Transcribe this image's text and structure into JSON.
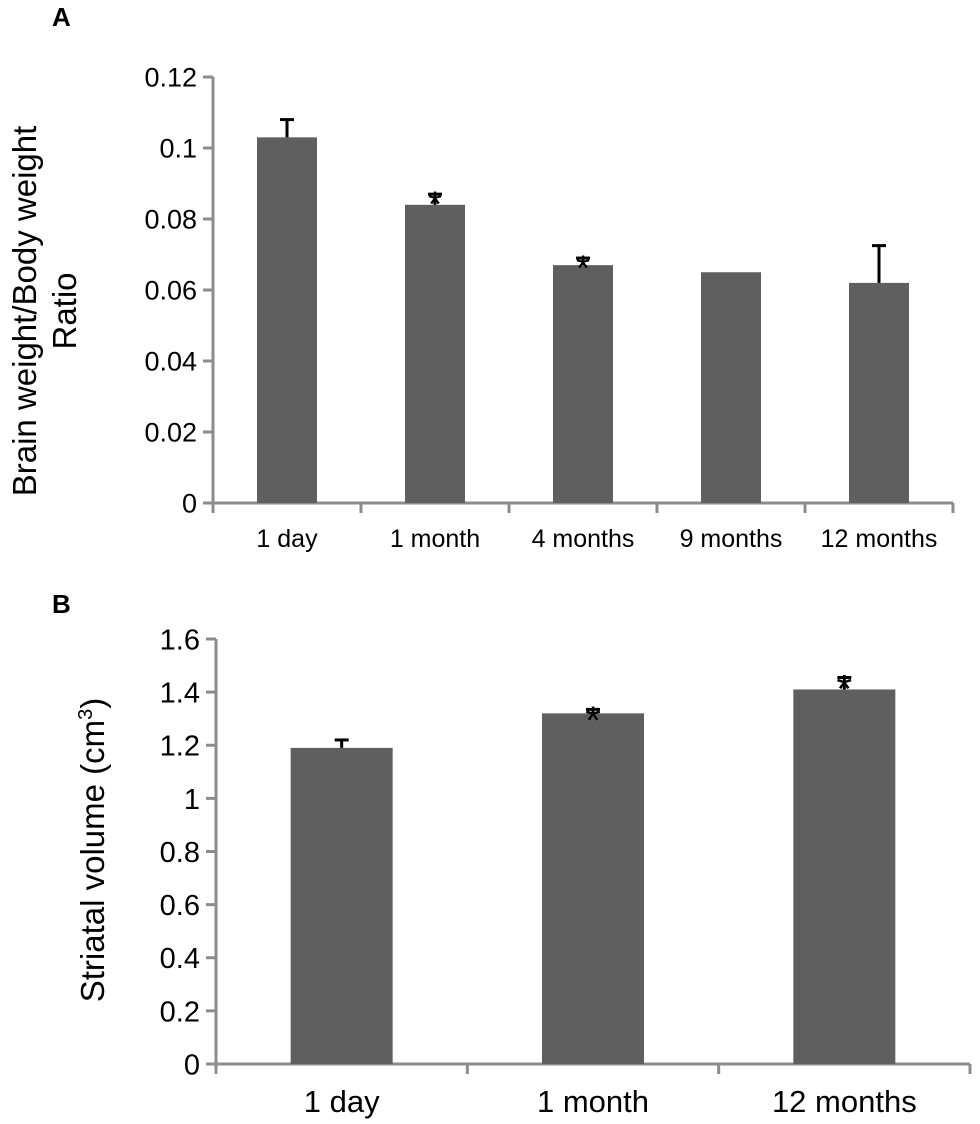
{
  "chart_data": [
    {
      "panel": "A",
      "type": "bar",
      "ylabel_line1": "Brain weight/Body weight",
      "ylabel_line2": "Ratio",
      "xlabel": "",
      "categories": [
        "1 day",
        "1 month",
        "4 months",
        "9 months",
        "12 months"
      ],
      "values": [
        0.103,
        0.084,
        0.067,
        0.065,
        0.062
      ],
      "errors": [
        0.005,
        0.003,
        0.002,
        0,
        0.0105
      ],
      "significant": [
        false,
        true,
        true,
        false,
        false
      ],
      "marker": "*",
      "ylim": [
        0,
        0.12
      ],
      "yticks": [
        "0",
        "0.02",
        "0.04",
        "0.06",
        "0.08",
        "0.1",
        "0.12"
      ],
      "bar_color": "#5f5f5f",
      "axis_color": "#8c8c8c"
    },
    {
      "panel": "B",
      "type": "bar",
      "ylabel": "Striatal volume (cm",
      "ylabel_sup": "3",
      "ylabel_end": ")",
      "xlabel": "",
      "categories": [
        "1 day",
        "1 month",
        "12 months"
      ],
      "values": [
        1.19,
        1.32,
        1.41
      ],
      "errors": [
        0.03,
        0.015,
        0.045
      ],
      "significant": [
        false,
        true,
        true
      ],
      "marker": "*",
      "ylim": [
        0,
        1.6
      ],
      "yticks": [
        "0",
        "0.2",
        "0.4",
        "0.6",
        "0.8",
        "1",
        "1.2",
        "1.4",
        "1.6"
      ],
      "bar_color": "#5f5f5f",
      "axis_color": "#8c8c8c"
    }
  ]
}
